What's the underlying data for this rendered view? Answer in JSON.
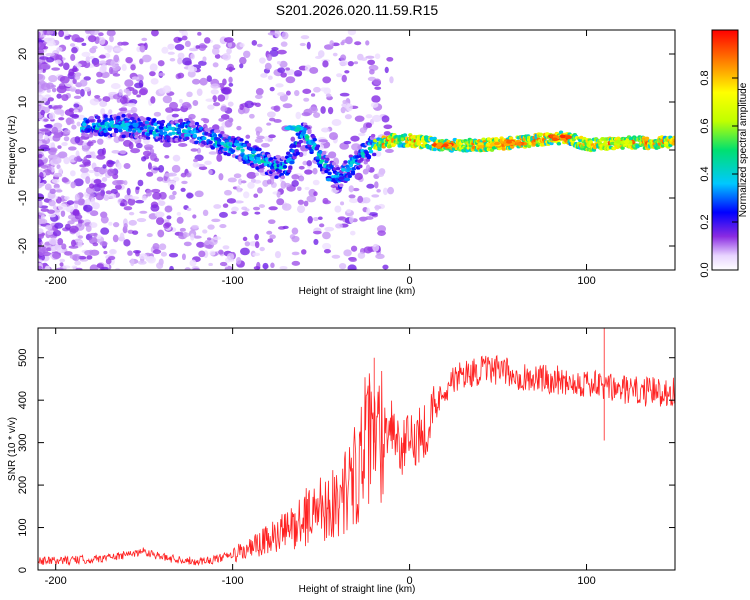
{
  "title": "S201.2026.020.11.59.R15",
  "chart_data": [
    {
      "type": "heatmap",
      "xlabel": "Height of straight line (km)",
      "ylabel": "Frequency (Hz)",
      "xlim": [
        -210,
        150
      ],
      "ylim": [
        -25,
        25
      ],
      "xticks": [
        -200,
        -100,
        0,
        100
      ],
      "yticks": [
        -20,
        -10,
        0,
        10,
        20
      ],
      "xtick_labels": [
        "-200",
        "-100",
        "0",
        "100"
      ],
      "ytick_labels": [
        "-20",
        "-10",
        "0",
        "10",
        "20"
      ],
      "colorbar": {
        "label": "Normalized spectral amplitude",
        "range": [
          0,
          1
        ],
        "ticks": [
          0.0,
          0.2,
          0.4,
          0.6,
          0.8
        ],
        "tick_labels": [
          "0.0",
          "0.2",
          "0.4",
          "0.6",
          "0.8"
        ]
      },
      "ridge": [
        {
          "x": -180,
          "y": 5
        },
        {
          "x": -160,
          "y": 5
        },
        {
          "x": -140,
          "y": 4
        },
        {
          "x": -125,
          "y": 4
        },
        {
          "x": -110,
          "y": 2
        },
        {
          "x": -95,
          "y": 0
        },
        {
          "x": -80,
          "y": -3
        },
        {
          "x": -70,
          "y": -4
        },
        {
          "x": -60,
          "y": 4
        },
        {
          "x": -50,
          "y": -2
        },
        {
          "x": -40,
          "y": -6
        },
        {
          "x": -30,
          "y": -2
        },
        {
          "x": -20,
          "y": 1
        },
        {
          "x": -10,
          "y": 2
        },
        {
          "x": 0,
          "y": 2
        },
        {
          "x": 20,
          "y": 1
        },
        {
          "x": 40,
          "y": 1
        },
        {
          "x": 60,
          "y": 1.5
        },
        {
          "x": 80,
          "y": 2.5
        },
        {
          "x": 90,
          "y": 2.5
        },
        {
          "x": 100,
          "y": 1
        },
        {
          "x": 120,
          "y": 1.5
        },
        {
          "x": 150,
          "y": 1.5
        }
      ]
    },
    {
      "type": "line",
      "xlabel": "Height of straight line (km)",
      "ylabel": "SNR (10 * v/v)",
      "xlim": [
        -210,
        150
      ],
      "ylim": [
        0,
        570
      ],
      "xticks": [
        -200,
        -100,
        0,
        100
      ],
      "yticks": [
        0,
        100,
        200,
        300,
        400,
        500
      ],
      "xtick_labels": [
        "-200",
        "-100",
        "0",
        "100"
      ],
      "ytick_labels": [
        "0",
        "100",
        "200",
        "300",
        "400",
        "500"
      ],
      "color": "#ff2222",
      "series": [
        {
          "name": "SNR",
          "x": [
            -210,
            -180,
            -160,
            -150,
            -140,
            -120,
            -110,
            -100,
            -90,
            -80,
            -70,
            -60,
            -50,
            -40,
            -30,
            -25,
            -20,
            -15,
            -10,
            -5,
            0,
            5,
            10,
            20,
            30,
            40,
            50,
            60,
            70,
            80,
            90,
            100,
            110,
            120,
            130,
            150
          ],
          "y": [
            20,
            25,
            35,
            45,
            30,
            20,
            25,
            35,
            50,
            70,
            90,
            120,
            150,
            160,
            230,
            300,
            300,
            330,
            350,
            280,
            300,
            320,
            340,
            430,
            460,
            470,
            470,
            460,
            450,
            450,
            445,
            440,
            430,
            425,
            420,
            420
          ]
        }
      ],
      "annotations": [
        {
          "x": -20,
          "y": 500
        },
        {
          "x": 110,
          "y": 570
        },
        {
          "x": 110,
          "y": 305
        }
      ]
    }
  ]
}
